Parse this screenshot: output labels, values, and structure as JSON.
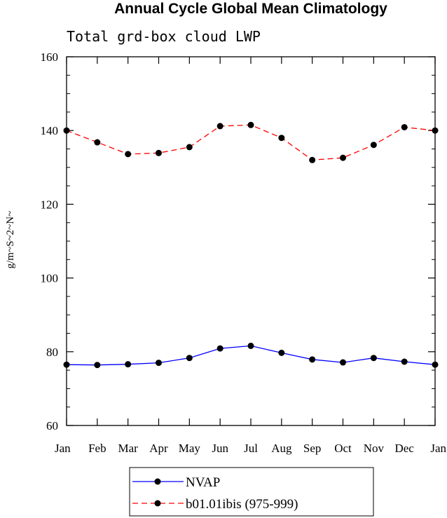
{
  "chart_data": {
    "type": "line",
    "title": "Annual Cycle Global Mean Climatology",
    "subtitle": "Total grd-box cloud LWP",
    "ylabel": "g/m~S~2~N~",
    "xlabel": "",
    "categories": [
      "Jan",
      "Feb",
      "Mar",
      "Apr",
      "May",
      "Jun",
      "Jul",
      "Aug",
      "Sep",
      "Oct",
      "Nov",
      "Dec",
      "Jan"
    ],
    "ylim": [
      60,
      160
    ],
    "yticks": [
      60,
      80,
      100,
      120,
      140,
      160
    ],
    "grid": false,
    "legend_position": "bottom",
    "series": [
      {
        "name": "NVAP",
        "color": "#0000ff",
        "dash": "solid",
        "values": [
          76.5,
          76.4,
          76.6,
          77.0,
          78.3,
          80.9,
          81.6,
          79.7,
          77.9,
          77.1,
          78.3,
          77.3,
          76.5
        ]
      },
      {
        "name": "b01.01ibis (975-999)",
        "color": "#ff0000",
        "dash": "dashed",
        "values": [
          140.0,
          136.8,
          133.6,
          133.9,
          135.5,
          141.2,
          141.5,
          138.0,
          132.0,
          132.6,
          136.1,
          140.9,
          140.0
        ]
      }
    ]
  }
}
